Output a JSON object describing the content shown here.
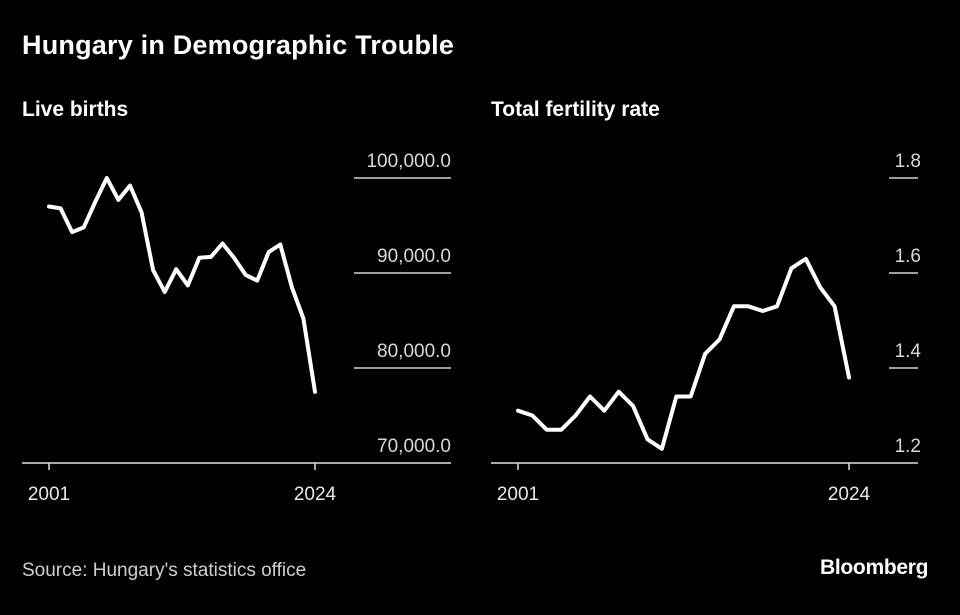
{
  "title": "Hungary in Demographic Trouble",
  "source": "Source: Hungary's statistics office",
  "brand": "Bloomberg",
  "chart_data": [
    {
      "type": "line",
      "title": "Live births",
      "x": [
        2001,
        2002,
        2003,
        2004,
        2005,
        2006,
        2007,
        2008,
        2009,
        2010,
        2011,
        2012,
        2013,
        2014,
        2015,
        2016,
        2017,
        2018,
        2019,
        2020,
        2021,
        2022,
        2023,
        2024
      ],
      "series": [
        {
          "values": [
            97000,
            96800,
            94300,
            94800,
            97500,
            100000,
            97700,
            99200,
            96400,
            90300,
            88000,
            90400,
            88700,
            91600,
            91700,
            93100,
            91600,
            89800,
            89200,
            92200,
            93000,
            88500,
            85200,
            77500
          ]
        }
      ],
      "y_ticks": [
        70000,
        80000,
        90000,
        100000
      ],
      "y_tick_labels": [
        "70,000.0",
        "80,000.0",
        "90,000.0",
        "100,000.0"
      ],
      "ylim": [
        70000,
        100000
      ],
      "x_tick_labels": [
        "2001",
        "2024"
      ],
      "color": "#ffffff"
    },
    {
      "type": "line",
      "title": "Total fertility rate",
      "x": [
        2001,
        2002,
        2003,
        2004,
        2005,
        2006,
        2007,
        2008,
        2009,
        2010,
        2011,
        2012,
        2013,
        2014,
        2015,
        2016,
        2017,
        2018,
        2019,
        2020,
        2021,
        2022,
        2023,
        2024
      ],
      "series": [
        {
          "values": [
            1.31,
            1.3,
            1.27,
            1.27,
            1.3,
            1.34,
            1.31,
            1.35,
            1.32,
            1.25,
            1.23,
            1.34,
            1.34,
            1.43,
            1.46,
            1.53,
            1.53,
            1.52,
            1.53,
            1.61,
            1.63,
            1.57,
            1.53,
            1.38
          ]
        }
      ],
      "y_ticks": [
        1.2,
        1.4,
        1.6,
        1.8
      ],
      "y_tick_labels": [
        "1.2",
        "1.4",
        "1.6",
        "1.8"
      ],
      "ylim": [
        1.2,
        1.8
      ],
      "x_tick_labels": [
        "2001",
        "2024"
      ],
      "color": "#ffffff"
    }
  ]
}
